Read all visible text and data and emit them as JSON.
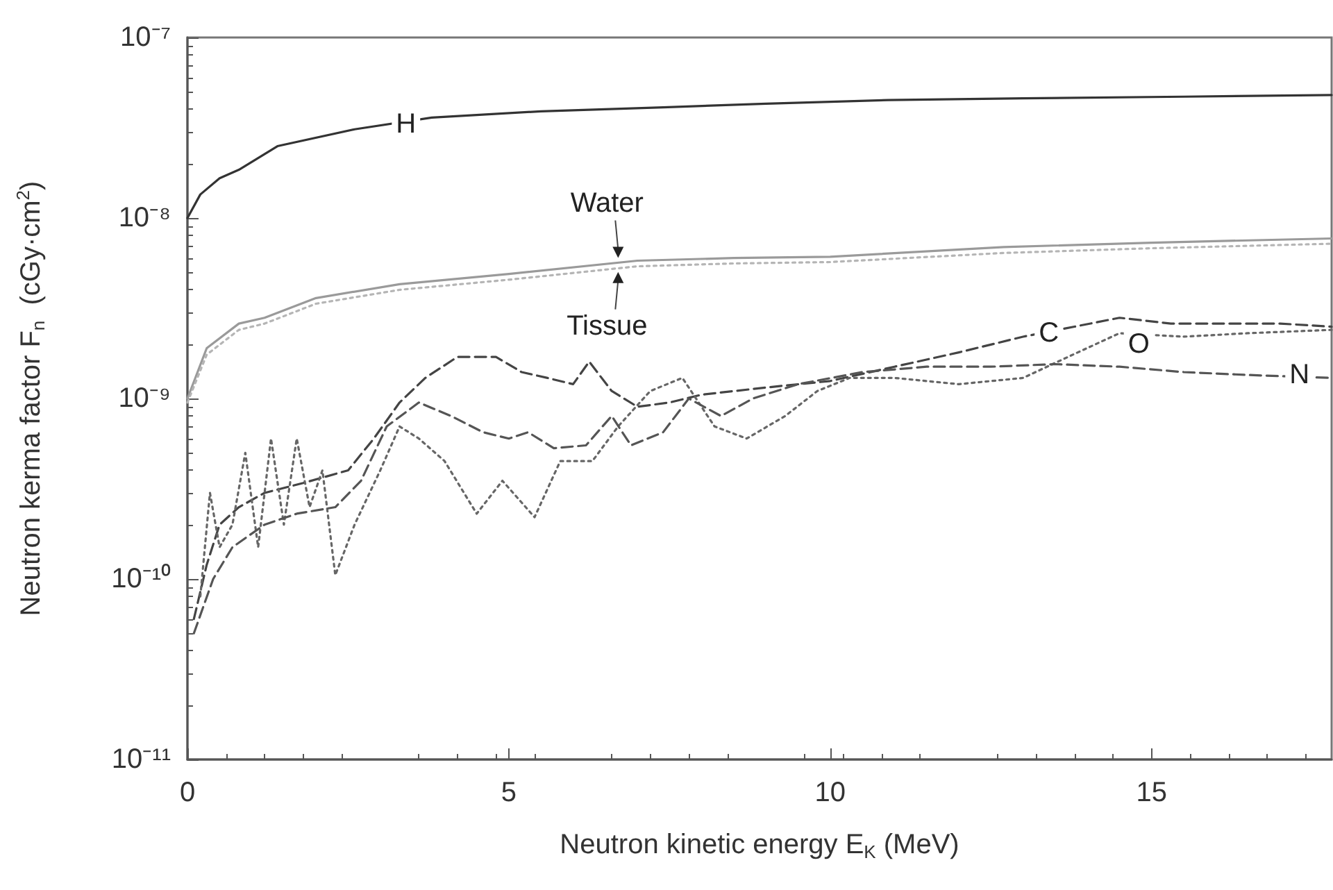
{
  "chart_data": {
    "type": "line",
    "xlabel": "Neutron kinetic energy E$_{K}$ (MeV)",
    "ylabel": "Neutron kerma factor F$_{n}$  (cGy·cm$^{2}$)",
    "log": "y",
    "xlim": [
      0,
      17.8
    ],
    "xticks": [
      0,
      5,
      10,
      15
    ],
    "ylim": [
      1e-11,
      1e-07
    ],
    "yticks": [
      {
        "value": 1e-11,
        "label": "10⁻¹¹"
      },
      {
        "value": 1e-10,
        "label": "10⁻¹⁰"
      },
      {
        "value": 1e-09,
        "label": "10⁻⁹"
      },
      {
        "value": 1e-08,
        "label": "10⁻⁸"
      },
      {
        "value": 1e-07,
        "label": "10⁻⁷"
      }
    ],
    "grid": false,
    "marker": "none",
    "series": [
      {
        "color": "#333333",
        "line_style": "solid",
        "x": [
          0,
          0.2,
          0.5,
          0.8,
          1.4,
          2.6,
          3.8,
          5.5,
          7.4,
          9,
          10.9,
          13,
          15.5,
          17.8
        ],
        "values": [
          1e-08,
          1.35e-08,
          1.66e-08,
          1.85e-08,
          2.5e-08,
          3.1e-08,
          3.6e-08,
          3.9e-08,
          4.1e-08,
          4.3e-08,
          4.5e-08,
          4.6e-08,
          4.7e-08,
          4.8e-08
        ]
      },
      {
        "color": "#9a9a9a",
        "line_style": "solid",
        "x": [
          0,
          0.3,
          0.8,
          1.2,
          2,
          3.3,
          5,
          7,
          8.5,
          10,
          12.7,
          15,
          17.8
        ],
        "values": [
          1e-09,
          1.9e-09,
          2.6e-09,
          2.8e-09,
          3.6e-09,
          4.3e-09,
          4.9e-09,
          5.8e-09,
          6e-09,
          6.1e-09,
          6.9e-09,
          7.3e-09,
          7.7e-09
        ]
      },
      {
        "color": "#b5b5b5",
        "line_style": "dotted",
        "x": [
          0,
          0.3,
          0.8,
          1.2,
          2,
          3.3,
          5,
          7,
          8.5,
          10,
          12.7,
          15,
          17.8
        ],
        "values": [
          9.5e-10,
          1.75e-09,
          2.4e-09,
          2.6e-09,
          3.35e-09,
          4e-09,
          4.55e-09,
          5.4e-09,
          5.6e-09,
          5.7e-09,
          6.4e-09,
          6.8e-09,
          7.2e-09
        ]
      },
      {
        "color": "#444444",
        "line_style": "dashed",
        "x": [
          0.1,
          0.3,
          0.5,
          0.8,
          1.2,
          1.8,
          2.5,
          2.9,
          3.3,
          3.7,
          4.2,
          4.8,
          5.2,
          5.6,
          6,
          6.25,
          6.6,
          7,
          7.5,
          8,
          9,
          10,
          11,
          12,
          13,
          13.8,
          14.5,
          15.3,
          16,
          17,
          17.8
        ],
        "values": [
          6e-11,
          1.2e-10,
          2e-10,
          2.5e-10,
          3e-10,
          3.4e-10,
          4e-10,
          6e-10,
          9.5e-10,
          1.3e-09,
          1.7e-09,
          1.7e-09,
          1.4e-09,
          1.3e-09,
          1.2e-09,
          1.6e-09,
          1.1e-09,
          9e-10,
          9.5e-10,
          1.05e-09,
          1.15e-09,
          1.25e-09,
          1.5e-09,
          1.8e-09,
          2.2e-09,
          2.5e-09,
          2.8e-09,
          2.6e-09,
          2.6e-09,
          2.6e-09,
          2.5e-09
        ]
      },
      {
        "color": "#666666",
        "line_style": "dotted",
        "x": [
          0.2,
          0.35,
          0.5,
          0.7,
          0.9,
          1.1,
          1.3,
          1.5,
          1.7,
          1.9,
          2.1,
          2.3,
          2.6,
          3,
          3.3,
          3.6,
          4,
          4.5,
          4.9,
          5.4,
          5.8,
          6.3,
          6.7,
          7.2,
          7.7,
          8.2,
          8.7,
          9.3,
          9.8,
          10.3,
          11,
          12,
          13,
          13.7,
          14.5,
          15.5,
          16.5,
          17.8
        ],
        "values": [
          8e-11,
          3e-10,
          1.5e-10,
          2e-10,
          5e-10,
          1.5e-10,
          6e-10,
          2e-10,
          6e-10,
          2.5e-10,
          4e-10,
          1.05e-10,
          2e-10,
          4e-10,
          7e-10,
          6e-10,
          4.5e-10,
          2.3e-10,
          3.5e-10,
          2.2e-10,
          4.5e-10,
          4.5e-10,
          7e-10,
          1.1e-09,
          1.3e-09,
          7e-10,
          6e-10,
          8e-10,
          1.1e-09,
          1.3e-09,
          1.3e-09,
          1.2e-09,
          1.3e-09,
          1.7e-09,
          2.3e-09,
          2.2e-09,
          2.3e-09,
          2.4e-09
        ]
      },
      {
        "color": "#555555",
        "line_style": "dashed",
        "x": [
          0.1,
          0.4,
          0.7,
          1.2,
          1.7,
          2.3,
          2.7,
          3.1,
          3.6,
          4.1,
          4.6,
          5,
          5.3,
          5.7,
          6.2,
          6.6,
          6.9,
          7.4,
          7.8,
          8.3,
          8.8,
          9.5,
          10.5,
          11.5,
          12.5,
          13.5,
          14.5,
          15.5,
          16.5,
          17.8
        ],
        "values": [
          5e-11,
          1e-10,
          1.5e-10,
          2e-10,
          2.3e-10,
          2.5e-10,
          3.5e-10,
          7e-10,
          9.5e-10,
          8e-10,
          6.5e-10,
          6e-10,
          6.5e-10,
          5.3e-10,
          5.5e-10,
          8e-10,
          5.5e-10,
          6.5e-10,
          1e-09,
          8e-10,
          1e-09,
          1.2e-09,
          1.4e-09,
          1.5e-09,
          1.5e-09,
          1.55e-09,
          1.5e-09,
          1.4e-09,
          1.35e-09,
          1.3e-09
        ]
      }
    ],
    "annotations": [
      {
        "text": "H",
        "x": 3.4,
        "y": 3.3e-08
      },
      {
        "text": "Water",
        "x": 6.7,
        "y": 5.7e-09
      },
      {
        "text": "Tissue",
        "x": 6.7,
        "y": 5.3e-09
      },
      {
        "text": "C",
        "x": 13.4,
        "y": 2.3e-09
      },
      {
        "text": "O",
        "x": 14.8,
        "y": 2e-09
      },
      {
        "text": "N",
        "x": 17.3,
        "y": 1.35e-09
      }
    ]
  }
}
